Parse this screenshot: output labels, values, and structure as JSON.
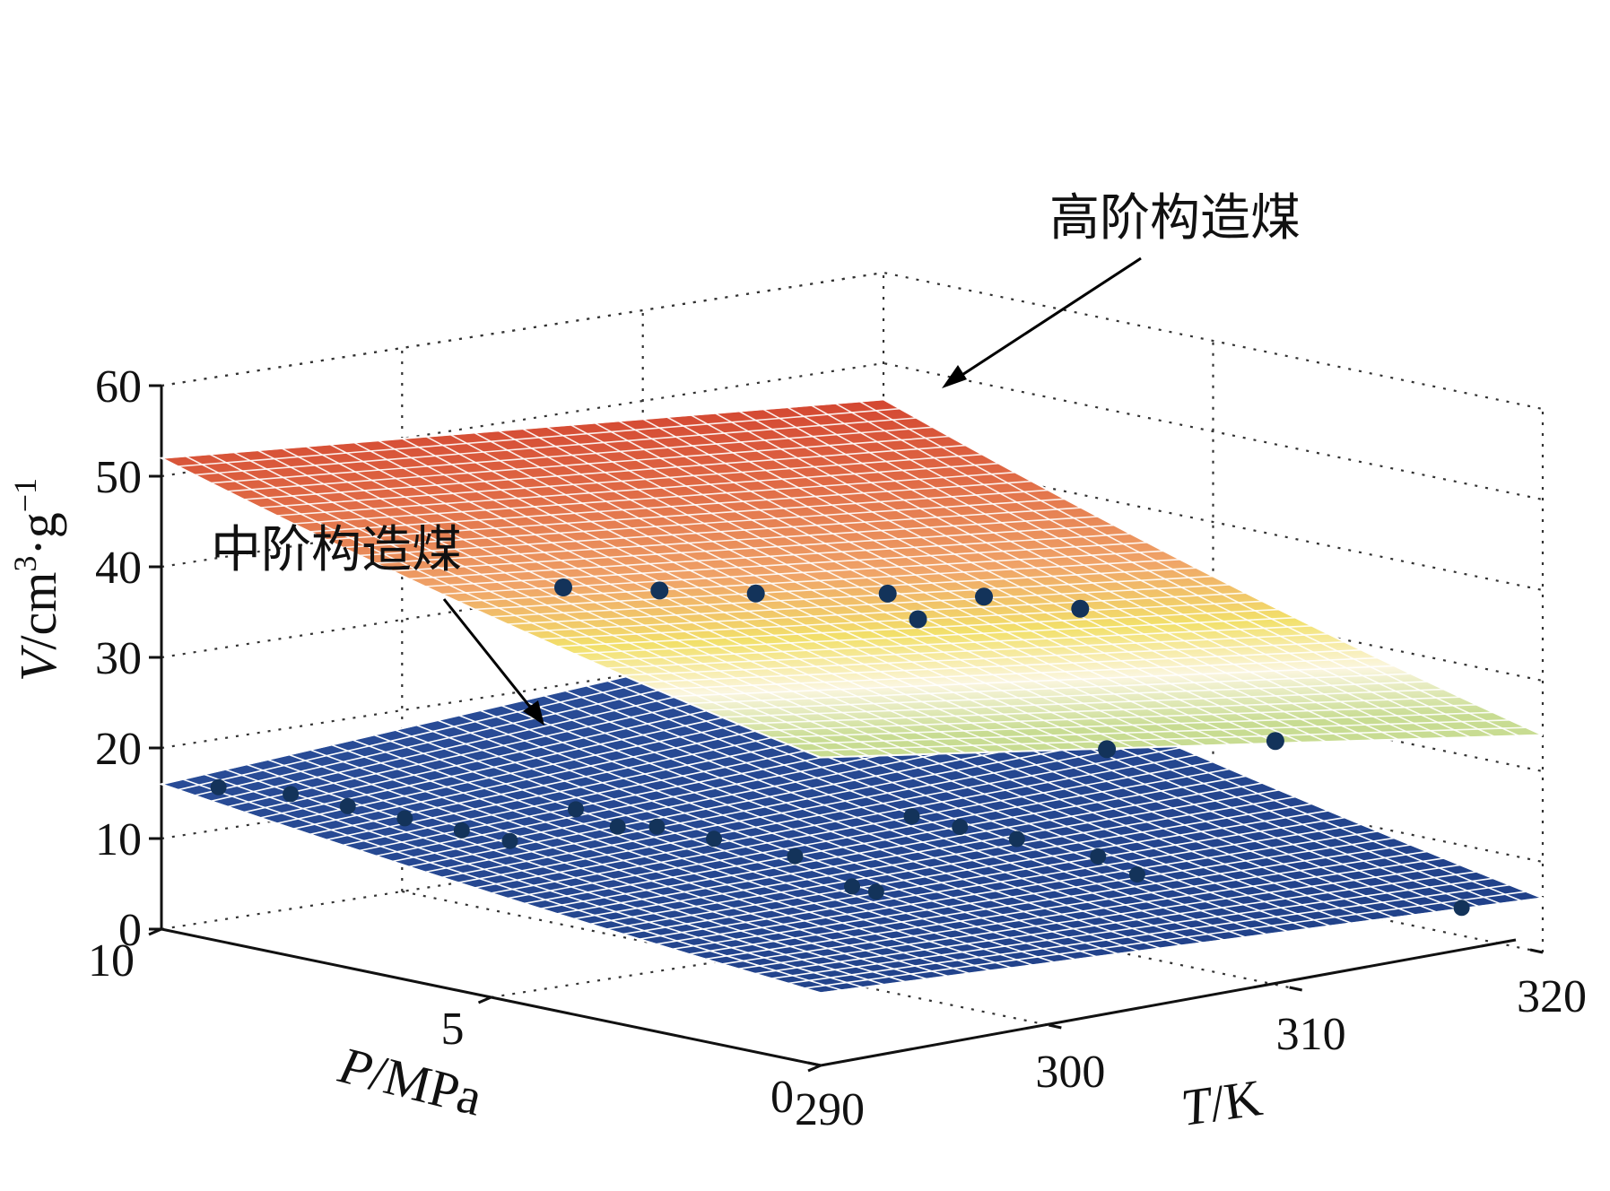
{
  "chart_data": {
    "type": "surface3d",
    "title": "",
    "xlabel_italic": "P",
    "xlabel_rest": "/MPa",
    "ylabel_italic": "T",
    "ylabel_rest": "/K",
    "zlabel_italic": "V",
    "zlabel_rest": "/cm",
    "zlabel_sup1": "3",
    "zlabel_mid": "·g",
    "zlabel_sup2": "−1",
    "x_ticks": [
      10,
      5,
      0
    ],
    "y_ticks": [
      290,
      300,
      310,
      320
    ],
    "z_ticks": [
      0,
      10,
      20,
      30,
      40,
      50,
      60
    ],
    "xlim": [
      0,
      10
    ],
    "ylim": [
      290,
      320
    ],
    "zlim": [
      0,
      60
    ],
    "grid": true,
    "series": [
      {
        "name": "高阶构造煤",
        "colormap": "hot-to-green",
        "points": [
          {
            "P": 5.0,
            "T": 293,
            "V": 44
          },
          {
            "P": 5.0,
            "T": 297,
            "V": 42
          },
          {
            "P": 5.0,
            "T": 301,
            "V": 40
          },
          {
            "P": 4.0,
            "T": 305,
            "V": 37
          },
          {
            "P": 3.0,
            "T": 301,
            "V": 43
          },
          {
            "P": 3.0,
            "T": 305,
            "V": 41
          },
          {
            "P": 3.0,
            "T": 309,
            "V": 38
          },
          {
            "P": 1.5,
            "T": 306,
            "V": 26
          },
          {
            "P": 1.5,
            "T": 313,
            "V": 24
          }
        ]
      },
      {
        "name": "中阶构造煤",
        "colormap": "blue",
        "points": [
          {
            "P": 9.5,
            "T": 291,
            "V": 16
          },
          {
            "P": 9.5,
            "T": 294,
            "V": 14
          },
          {
            "P": 9.0,
            "T": 295,
            "V": 13
          },
          {
            "P": 8.5,
            "T": 296,
            "V": 12
          },
          {
            "P": 8.0,
            "T": 297,
            "V": 11
          },
          {
            "P": 8.0,
            "T": 299,
            "V": 9
          },
          {
            "P": 7.0,
            "T": 299,
            "V": 14
          },
          {
            "P": 6.5,
            "T": 301,
            "V": 12
          },
          {
            "P": 6.0,
            "T": 302,
            "V": 11
          },
          {
            "P": 5.5,
            "T": 304,
            "V": 9
          },
          {
            "P": 5.0,
            "T": 305,
            "V": 6
          },
          {
            "P": 5.0,
            "T": 306,
            "V": 5
          },
          {
            "P": 3.0,
            "T": 302,
            "V": 18
          },
          {
            "P": 3.0,
            "T": 304,
            "V": 16
          },
          {
            "P": 2.5,
            "T": 305,
            "V": 15
          },
          {
            "P": 2.0,
            "T": 307,
            "V": 13
          },
          {
            "P": 2.5,
            "T": 310,
            "V": 9
          },
          {
            "P": 0.5,
            "T": 318,
            "V": 5
          },
          {
            "P": 6.0,
            "T": 298,
            "V": 14
          }
        ]
      }
    ]
  }
}
